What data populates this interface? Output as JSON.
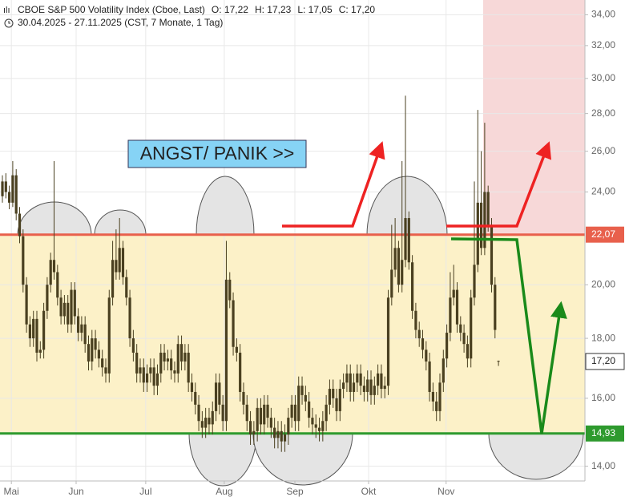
{
  "chart_data": {
    "type": "candlestick",
    "title": "CBOE S&P 500 Volatility Index (Cboe, Last)",
    "ohlc_labels": [
      "O: 17,22",
      "H: 17,23",
      "L: 17,05",
      "C: 17,20"
    ],
    "subtitle": "30.04.2025 - 27.11.2025  (CST, 7 Monate, 1 Tag)",
    "annotation": "ANGST/ PANIK >>",
    "color": "#4a4020",
    "log_scale": true,
    "grid": true,
    "xlim": [
      -0.7,
      169.1
    ],
    "xticks": [
      {
        "value": 2.6,
        "label": "Mai"
      },
      {
        "value": 21.4,
        "label": "Jun"
      },
      {
        "value": 41.6,
        "label": "Jul"
      },
      {
        "value": 64.4,
        "label": "Aug"
      },
      {
        "value": 84.9,
        "label": "Sep"
      },
      {
        "value": 106.3,
        "label": "Okt"
      },
      {
        "value": 128.8,
        "label": "Nov"
      }
    ],
    "ylim": [
      13.6,
      35
    ],
    "yticks": [
      {
        "value": 14,
        "label": "14,00"
      },
      {
        "value": 16,
        "label": "16,00"
      },
      {
        "value": 18,
        "label": "18,00"
      },
      {
        "value": 20,
        "label": "20,00"
      },
      {
        "value": 24,
        "label": "24,00"
      },
      {
        "value": 26,
        "label": "26,00"
      },
      {
        "value": 28,
        "label": "28,00"
      },
      {
        "value": 30,
        "label": "30,00"
      },
      {
        "value": 32,
        "label": "32,00"
      },
      {
        "value": 34,
        "label": "34,00"
      }
    ],
    "levels": [
      {
        "value": 22.07,
        "label": "22,07",
        "color": "#e8604c"
      },
      {
        "value": 14.93,
        "label": "14,93",
        "color": "#2e9a2e"
      }
    ],
    "band_color": "#fcf1c8",
    "last": {
      "value": 17.2,
      "label": "17,20"
    },
    "ohlc": [
      [
        23.8,
        24.8,
        23.5,
        24.5
      ],
      [
        24.5,
        24.9,
        23.7,
        24
      ],
      [
        24,
        24.3,
        23.2,
        23.5
      ],
      [
        23.5,
        25.5,
        23.3,
        24.8
      ],
      [
        24.8,
        25.1,
        22.7,
        23
      ],
      [
        23,
        23.3,
        21.7,
        22
      ],
      [
        22,
        22.3,
        19.7,
        20
      ],
      [
        20,
        20.3,
        18.2,
        18.5
      ],
      [
        18.5,
        18.8,
        17.7,
        18
      ],
      [
        18,
        19,
        17.7,
        18.7
      ],
      [
        18.7,
        19,
        17.2,
        17.5
      ],
      [
        17.5,
        17.9,
        17.3,
        17.6
      ],
      [
        17.6,
        19.3,
        17.3,
        19
      ],
      [
        19,
        20.3,
        18.7,
        20
      ],
      [
        20,
        21.3,
        19.7,
        21
      ],
      [
        21,
        25.5,
        20.2,
        20.5
      ],
      [
        20.5,
        20.8,
        19.2,
        19.5
      ],
      [
        19.5,
        19.8,
        18.5,
        18.8
      ],
      [
        18.8,
        19.6,
        18.5,
        19.3
      ],
      [
        19.3,
        19.6,
        18.2,
        18.5
      ],
      [
        18.5,
        20.1,
        18.2,
        19.8
      ],
      [
        19.8,
        20.1,
        18.5,
        18.8
      ],
      [
        18.8,
        19.1,
        17.9,
        18.2
      ],
      [
        18.2,
        18.8,
        17.9,
        18.5
      ],
      [
        18.5,
        18.8,
        17.5,
        17.8
      ],
      [
        17.8,
        18.1,
        16.9,
        17.2
      ],
      [
        17.2,
        18.3,
        16.9,
        18
      ],
      [
        18,
        18.3,
        17.3,
        17.6
      ],
      [
        17.6,
        17.9,
        17,
        17.3
      ],
      [
        17.3,
        17.6,
        16.7,
        17
      ],
      [
        17,
        17.3,
        16.5,
        16.8
      ],
      [
        16.8,
        19.8,
        16.5,
        19.5
      ],
      [
        19.5,
        21.8,
        19.2,
        21
      ],
      [
        21,
        22.3,
        20.2,
        20.5
      ],
      [
        20.5,
        22.8,
        20.2,
        21.5
      ],
      [
        21.5,
        21.8,
        20,
        20.3
      ],
      [
        20.3,
        20.6,
        19.2,
        19.5
      ],
      [
        19.5,
        19.8,
        17.7,
        18
      ],
      [
        18,
        18.3,
        17.2,
        17.5
      ],
      [
        17.5,
        17.8,
        16.5,
        16.8
      ],
      [
        16.8,
        17.3,
        16.5,
        17
      ],
      [
        17,
        17.3,
        16.2,
        16.5
      ],
      [
        16.5,
        17.1,
        16.2,
        16.8
      ],
      [
        16.8,
        17.3,
        16.5,
        17
      ],
      [
        17,
        17.3,
        16.1,
        16.4
      ],
      [
        16.4,
        17.1,
        16.1,
        16.8
      ],
      [
        16.8,
        17.8,
        16.5,
        17.5
      ],
      [
        17.5,
        17.8,
        16.9,
        17.2
      ],
      [
        17.2,
        17.6,
        16.9,
        17.3
      ],
      [
        17.3,
        17.6,
        16.6,
        16.9
      ],
      [
        16.9,
        17.2,
        16.5,
        16.8
      ],
      [
        16.8,
        18.1,
        16.5,
        17.8
      ],
      [
        17.8,
        18.1,
        16.9,
        17.2
      ],
      [
        17.2,
        17.8,
        16.9,
        17.5
      ],
      [
        17.5,
        17.8,
        16.2,
        16.5
      ],
      [
        16.5,
        16.8,
        15.9,
        16.2
      ],
      [
        16.2,
        16.5,
        15.5,
        15.8
      ],
      [
        15.8,
        16.1,
        15,
        15.3
      ],
      [
        15.3,
        15.6,
        14.8,
        15.1
      ],
      [
        15.1,
        15.7,
        14.8,
        15.4
      ],
      [
        15.4,
        15.7,
        14.9,
        15.2
      ],
      [
        15.2,
        15.9,
        14.9,
        15.6
      ],
      [
        15.6,
        16.8,
        15.3,
        16.5
      ],
      [
        16.5,
        16.8,
        15.5,
        15.8
      ],
      [
        15.8,
        16.1,
        15,
        15.3
      ],
      [
        15.3,
        21.8,
        15,
        20.2
      ],
      [
        20.2,
        20.5,
        19.1,
        19.4
      ],
      [
        19.4,
        19.7,
        17.4,
        17.7
      ],
      [
        17.7,
        18,
        17.2,
        17.5
      ],
      [
        17.5,
        17.8,
        15.9,
        16.2
      ],
      [
        16.2,
        16.5,
        15.5,
        15.8
      ],
      [
        15.8,
        16.1,
        15,
        15.3
      ],
      [
        15.3,
        15.6,
        14.6,
        14.9
      ],
      [
        14.9,
        15.3,
        14.6,
        15
      ],
      [
        15,
        16,
        14.7,
        15.7
      ],
      [
        15.7,
        16,
        14.9,
        15.2
      ],
      [
        15.2,
        16.1,
        14.9,
        15.8
      ],
      [
        15.8,
        16.1,
        15.1,
        15.4
      ],
      [
        15.4,
        15.7,
        14.8,
        15.1
      ],
      [
        15.1,
        15.4,
        14.5,
        14.8
      ],
      [
        14.8,
        15.3,
        14.5,
        15
      ],
      [
        15,
        15.3,
        14.4,
        14.7
      ],
      [
        14.7,
        15.2,
        14.4,
        14.9
      ],
      [
        14.9,
        15.7,
        14.6,
        15.4
      ],
      [
        15.4,
        16.1,
        15.1,
        15.8
      ],
      [
        15.8,
        16.1,
        15,
        15.3
      ],
      [
        15.3,
        16.7,
        15,
        16.4
      ],
      [
        16.4,
        16.7,
        15.8,
        16.1
      ],
      [
        16.1,
        16.4,
        15.6,
        15.9
      ],
      [
        15.9,
        16.2,
        15.1,
        15.4
      ],
      [
        15.4,
        15.7,
        14.9,
        15.2
      ],
      [
        15.2,
        15.5,
        14.8,
        15.1
      ],
      [
        15.1,
        15.4,
        14.7,
        15
      ],
      [
        15,
        15.6,
        14.7,
        15.3
      ],
      [
        15.3,
        16.1,
        15,
        15.8
      ],
      [
        15.8,
        16.6,
        15.5,
        16.3
      ],
      [
        16.3,
        16.6,
        15.7,
        16
      ],
      [
        16,
        16.3,
        15.3,
        15.6
      ],
      [
        15.6,
        16.6,
        15.3,
        16.3
      ],
      [
        16.3,
        16.8,
        16,
        16.5
      ],
      [
        16.5,
        17.1,
        16.2,
        16.8
      ],
      [
        16.8,
        17.1,
        15.9,
        16.2
      ],
      [
        16.2,
        16.8,
        15.9,
        16.5
      ],
      [
        16.5,
        17.1,
        16.2,
        16.8
      ],
      [
        16.8,
        17.1,
        16.1,
        16.4
      ],
      [
        16.4,
        16.7,
        15.9,
        16.2
      ],
      [
        16.2,
        16.9,
        15.9,
        16.6
      ],
      [
        16.6,
        16.9,
        15.8,
        16.1
      ],
      [
        16.1,
        16.7,
        15.8,
        16.4
      ],
      [
        16.4,
        17.1,
        16.1,
        16.8
      ],
      [
        16.8,
        17.1,
        16,
        16.3
      ],
      [
        16.3,
        16.7,
        16,
        16.4
      ],
      [
        16.4,
        19.8,
        16.1,
        19.5
      ],
      [
        19.5,
        22.5,
        19.2,
        20.6
      ],
      [
        20.6,
        22.8,
        20.3,
        21.5
      ],
      [
        21.5,
        21.8,
        19.7,
        20
      ],
      [
        20,
        25.5,
        19.7,
        21
      ],
      [
        21,
        29,
        20.7,
        22.8
      ],
      [
        22.8,
        23.1,
        20.6,
        20.9
      ],
      [
        20.9,
        21.2,
        18.7,
        19
      ],
      [
        19,
        19.3,
        18,
        18.3
      ],
      [
        18.3,
        18.6,
        17.7,
        18
      ],
      [
        18,
        18.3,
        17.3,
        17.6
      ],
      [
        17.6,
        17.9,
        16.9,
        17.2
      ],
      [
        17.2,
        17.5,
        15.9,
        16.2
      ],
      [
        16.2,
        16.5,
        15.6,
        15.9
      ],
      [
        15.9,
        16.2,
        15.3,
        15.6
      ],
      [
        15.6,
        16.8,
        15.3,
        16.5
      ],
      [
        16.5,
        17.6,
        16.2,
        17.3
      ],
      [
        17.3,
        18.5,
        17,
        18.2
      ],
      [
        18.2,
        20.5,
        17.9,
        19.5
      ],
      [
        19.5,
        20.8,
        19.2,
        19.8
      ],
      [
        19.8,
        20.1,
        18.2,
        18.5
      ],
      [
        18.5,
        18.8,
        17.9,
        18.2
      ],
      [
        18.2,
        18.5,
        17.5,
        17.8
      ],
      [
        17.8,
        18.1,
        17,
        17.3
      ],
      [
        17.3,
        19.8,
        17,
        19.5
      ],
      [
        19.5,
        24.5,
        19.2,
        20.8
      ],
      [
        20.8,
        28.2,
        20.5,
        23.5
      ],
      [
        23.5,
        26,
        21.2,
        21.5
      ],
      [
        21.5,
        27.5,
        21.2,
        24
      ],
      [
        24,
        24.3,
        22.2,
        22.5
      ],
      [
        22.5,
        22.8,
        19.7,
        20
      ],
      [
        20,
        20.3,
        18,
        18.3
      ],
      [
        17.22,
        17.23,
        17.05,
        17.2
      ]
    ]
  }
}
